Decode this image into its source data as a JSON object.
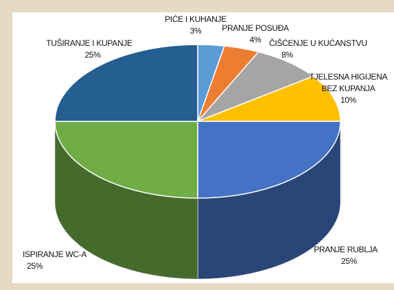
{
  "chart_data": {
    "type": "pie3d",
    "categories": [
      "PIĆE I KUHANJE",
      "PRANJE POSUĐA",
      "ČIŠĆENJE U KUĆANSTVU",
      "TJELESNA HIGIJENA BEZ KUPANJA",
      "PRANJE RUBLJA",
      "ISPIRANJE WC-A",
      "TUŠIRANJE I KUPANJE"
    ],
    "values": [
      3,
      4,
      8,
      10,
      25,
      25,
      25
    ],
    "value_labels": [
      "3%",
      "4%",
      "8%",
      "10%",
      "25%",
      "25%",
      "25%"
    ],
    "colors": [
      "#5b9bd5",
      "#ed7d31",
      "#a5a5a5",
      "#ffc000",
      "#4472c4",
      "#70ad47",
      "#255e91"
    ]
  }
}
